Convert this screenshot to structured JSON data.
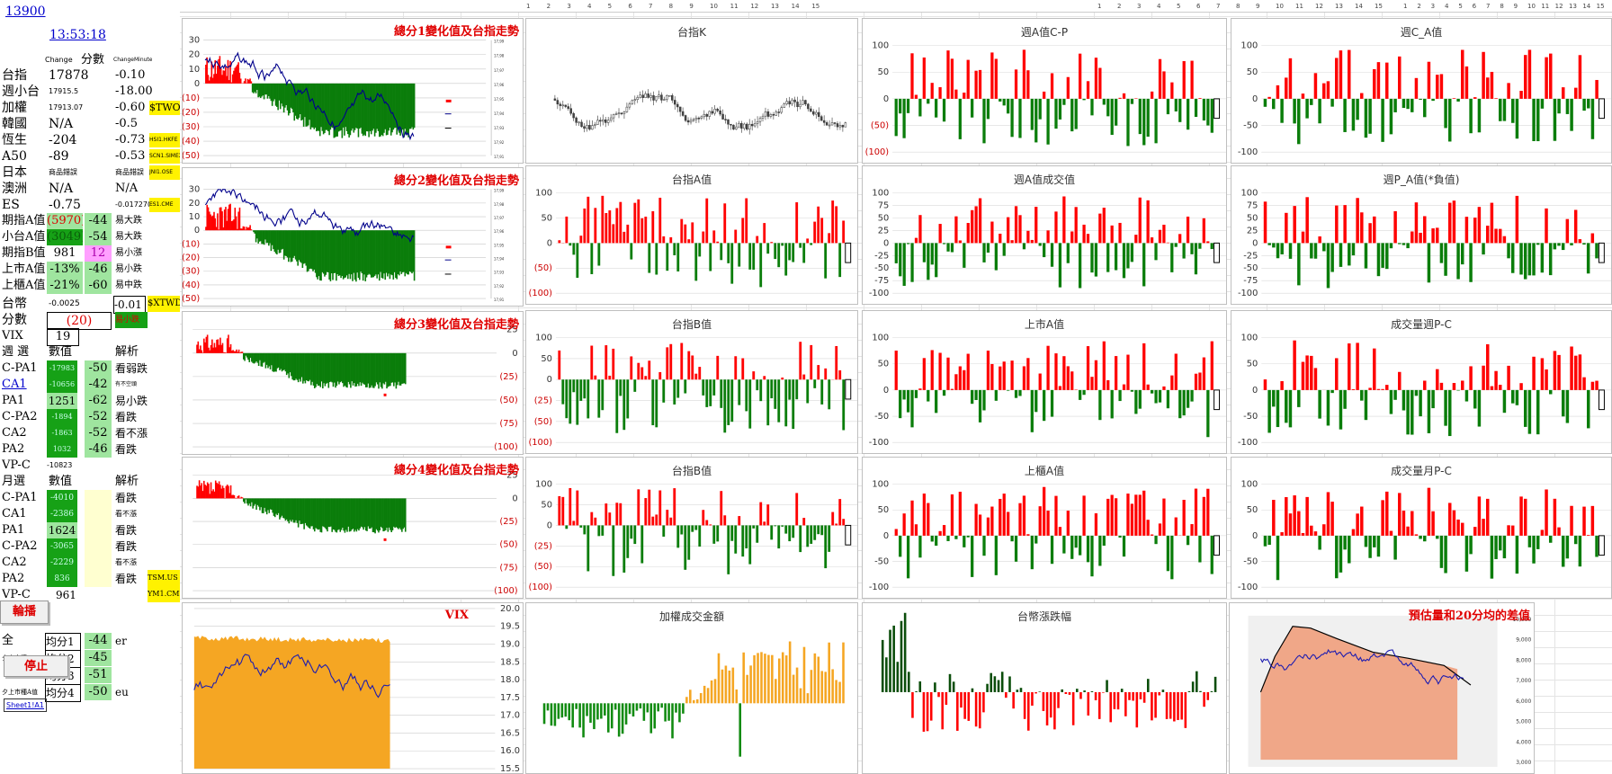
{
  "top_ruler": [
    "1",
    "2",
    "3",
    "4",
    "5",
    "6",
    "7",
    "8",
    "9",
    "10",
    "11",
    "12",
    "13",
    "14",
    "15"
  ],
  "left_panel": {
    "cell_ref": "13900",
    "time": "13:53:18",
    "headers": {
      "change": "Change",
      "score": "分數",
      "chg_small": "ChangeMinute"
    },
    "rows": [
      {
        "label": "台指",
        "value": "17878",
        "extra": "",
        "chg": "-0.10",
        "tag": ""
      },
      {
        "label": "週小台",
        "value": "17915.5",
        "extra": "",
        "chg": "-18.00",
        "tag": ""
      },
      {
        "label": "加權",
        "value": "17913.07",
        "extra": "",
        "chg": "-0.60",
        "tag": "$TWO"
      },
      {
        "label": "韓國",
        "value": "N/A",
        "extra": "",
        "chg": "-0.5",
        "tag": ""
      },
      {
        "label": "恆生",
        "value": "-204",
        "extra": "",
        "chg": "-0.73",
        "tag": "HSI1.HKFE"
      },
      {
        "label": "A50",
        "value": "-89",
        "extra": "",
        "chg": "-0.53",
        "tag": "SCN1.SIMEX"
      },
      {
        "label": "日本",
        "value": "商品錯誤",
        "extra": "",
        "chg": "商品錯誤",
        "tag": "JNI1.OSE"
      },
      {
        "label": "澳洲",
        "value": "N/A",
        "extra": "",
        "chg": "N/A",
        "tag": ""
      },
      {
        "label": "ES",
        "value": "-0.75",
        "extra": "",
        "chg": "-0.0172701",
        "tag": "ES1.CME"
      }
    ],
    "a_rows": [
      {
        "label": "期指A值",
        "value": "(5970)",
        "score": "-44",
        "note": "易大跌"
      },
      {
        "label": "小台A值",
        "value": "(3049)",
        "score": "-54",
        "note": "易大跌"
      },
      {
        "label": "期指B值",
        "value": "981",
        "score": "12",
        "note": "易小漲"
      },
      {
        "label": "上市A值",
        "value": "-13%",
        "score": "-46",
        "note": "易小跌"
      },
      {
        "label": "上櫃A值",
        "value": "-21%",
        "score": "-60",
        "note": "易中跌"
      }
    ],
    "twd": {
      "label": "台幣",
      "value": "-0.0025",
      "chg": "-0.01",
      "tag": "$XTWD"
    },
    "score_row": {
      "label": "分數",
      "value": "(20)",
      "tag": "易小跌"
    },
    "vix": {
      "label": "VIX",
      "value": "19"
    },
    "week_header": {
      "label": "週 選",
      "col": "數值",
      "note": "解析"
    },
    "week_rows": [
      {
        "label": "C-PA1",
        "value": "-17983",
        "score": "-50",
        "note": "看弱跌"
      },
      {
        "label": "CA1",
        "value": "-10656",
        "score": "-42",
        "note": "有不空頭"
      },
      {
        "label": "PA1",
        "value": "1251",
        "score": "-62",
        "note": "易小跌"
      },
      {
        "label": "C-PA2",
        "value": "-1894",
        "score": "-52",
        "note": "看跌"
      },
      {
        "label": "CA2",
        "value": "-1863",
        "score": "-52",
        "note": "看不漲"
      },
      {
        "label": "PA2",
        "value": "1032",
        "score": "-46",
        "note": "看跌"
      }
    ],
    "week_vp": {
      "label": "VP-C",
      "value": "-10823"
    },
    "month_header": {
      "label": "月選",
      "col": "數值",
      "note": "解析"
    },
    "month_rows": [
      {
        "label": "C-PA1",
        "value": "-4010",
        "note": "看跌"
      },
      {
        "label": "CA1",
        "value": "-2386",
        "note": "看不漲"
      },
      {
        "label": "PA1",
        "value": "1624",
        "note": "看跌"
      },
      {
        "label": "C-PA2",
        "value": "-3065",
        "note": "看跌"
      },
      {
        "label": "CA2",
        "value": "-2229",
        "note": "看不漲"
      },
      {
        "label": "PA2",
        "value": "836",
        "note": "看跌"
      }
    ],
    "month_vp": {
      "label": "VP-C",
      "value": "961"
    },
    "tags_lower": [
      "TSM.US",
      "YM1.CME"
    ],
    "btn_rotate": "輪播",
    "btn_stop": "停止",
    "avg_rows": [
      {
        "label": "全",
        "avg": "均分1",
        "value": "-44",
        "note": "er"
      },
      {
        "label": "夕上市種",
        "avg": "均分2",
        "value": "-45",
        "note": ""
      },
      {
        "label": "",
        "avg": "均分3",
        "value": "-51",
        "note": ""
      },
      {
        "label": "夕上市種A值",
        "avg": "均分4",
        "value": "-50",
        "note": "eu"
      }
    ],
    "sheet_link": "Sheet1!A1"
  },
  "charts": {
    "score1": {
      "title": "總分1變化值及台指走勢"
    },
    "score2": {
      "title": "總分2變化值及台指走勢"
    },
    "score3": {
      "title": "總分3變化值及台指走勢"
    },
    "score4": {
      "title": "總分4變化值及台指走勢"
    },
    "vix": {
      "title": "VIX"
    },
    "k": {
      "title": "台指K"
    },
    "a": {
      "title": "台指A值"
    },
    "b": {
      "title": "台指B值"
    },
    "b2": {
      "title": "台指B值"
    },
    "amount": {
      "title": "加權成交金額"
    },
    "weekcp": {
      "title": "週A值C-P"
    },
    "weekvol": {
      "title": "週A值成交值"
    },
    "listed": {
      "title": "上市A值"
    },
    "otc": {
      "title": "上櫃A值"
    },
    "twd": {
      "title": "台幣漲跌幅"
    },
    "weekca": {
      "title": "週C_A值"
    },
    "weekpa": {
      "title": "週P_A值(*負值)"
    },
    "volweek": {
      "title": "成交量週P-C"
    },
    "volmonth": {
      "title": "成交量月P-C"
    },
    "est": {
      "title": "預估量和20分均的差值"
    }
  },
  "colors": {
    "red": "#ff0000",
    "green": "#0a7d0a",
    "orange": "#f5a623",
    "navy": "#00008b",
    "salmon": "#f0a788"
  }
}
